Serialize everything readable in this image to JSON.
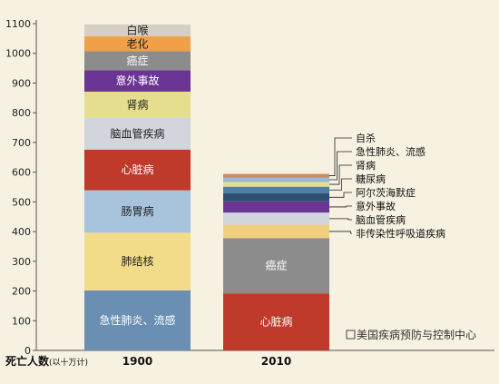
{
  "chart_data": {
    "type": "bar",
    "stacked": true,
    "ylim": [
      0,
      1100
    ],
    "yticks": [
      0,
      100,
      200,
      300,
      400,
      500,
      600,
      700,
      800,
      900,
      1000,
      1100
    ],
    "ylabel_main": "死亡人数",
    "ylabel_unit": "(以十万计)",
    "source": "美国疾病预防与控制中心",
    "categories": [
      "1900",
      "2010"
    ],
    "bars": [
      {
        "category": "1900",
        "segments": [
          {
            "name": "急性肺炎、流感",
            "value": 202,
            "color": "#6a8fb3",
            "text_color": "#ffffff",
            "label": "急性肺炎、流感"
          },
          {
            "name": "肺结核",
            "value": 194,
            "color": "#f2dc8a",
            "text_color": "#222222",
            "label": "肺结核"
          },
          {
            "name": "肠胃病",
            "value": 143,
            "color": "#a8c3dc",
            "text_color": "#222222",
            "label": "肠胃病"
          },
          {
            "name": "心脏病",
            "value": 137,
            "color": "#c03a2b",
            "text_color": "#ffffff",
            "label": "心脏病"
          },
          {
            "name": "脑血管疾病",
            "value": 107,
            "color": "#d3d5dd",
            "text_color": "#222222",
            "label": "脑血管疾病"
          },
          {
            "name": "肾病",
            "value": 88,
            "color": "#e4de8e",
            "text_color": "#222222",
            "label": "肾病"
          },
          {
            "name": "意外事故",
            "value": 72,
            "color": "#6b3596",
            "text_color": "#ffffff",
            "label": "意外事故"
          },
          {
            "name": "癌症",
            "value": 64,
            "color": "#8c8c8c",
            "text_color": "#ffffff",
            "label": "癌症"
          },
          {
            "name": "老化",
            "value": 50,
            "color": "#f0a046",
            "text_color": "#222222",
            "label": "老化"
          },
          {
            "name": "白喉",
            "value": 40,
            "color": "#d6cfc3",
            "text_color": "#222222",
            "label": "白喉"
          }
        ]
      },
      {
        "category": "2010",
        "segments": [
          {
            "name": "心脏病",
            "value": 192,
            "color": "#c03a2b",
            "text_color": "#ffffff",
            "label": "心脏病"
          },
          {
            "name": "癌症",
            "value": 186,
            "color": "#8c8c8c",
            "text_color": "#ffffff",
            "label": "癌症"
          },
          {
            "name": "非传染性呼吸道疾病",
            "value": 45,
            "color": "#f2cf7c",
            "text_color": "#222222",
            "label": ""
          },
          {
            "name": "脑血管疾病",
            "value": 41,
            "color": "#d3d5dd",
            "text_color": "#222222",
            "label": ""
          },
          {
            "name": "意外事故",
            "value": 38,
            "color": "#6b3596",
            "text_color": "#ffffff",
            "label": ""
          },
          {
            "name": "阿尔茨海默症",
            "value": 27,
            "color": "#2b4f6e",
            "text_color": "#ffffff",
            "label": ""
          },
          {
            "name": "糖尿病",
            "value": 22,
            "color": "#4d7da8",
            "text_color": "#ffffff",
            "label": ""
          },
          {
            "name": "肾病",
            "value": 16,
            "color": "#e4de8e",
            "text_color": "#222222",
            "label": ""
          },
          {
            "name": "急性肺炎、流感",
            "value": 15,
            "color": "#98b8d4",
            "text_color": "#222222",
            "label": ""
          },
          {
            "name": "自杀",
            "value": 12,
            "color": "#c98b6a",
            "text_color": "#ffffff",
            "label": ""
          }
        ]
      }
    ],
    "annotations_2010": [
      "自杀",
      "急性肺炎、流感",
      "肾病",
      "糖尿病",
      "阿尔茨海默症",
      "意外事故",
      "脑血管疾病",
      "非传染性呼吸道疾病"
    ]
  }
}
